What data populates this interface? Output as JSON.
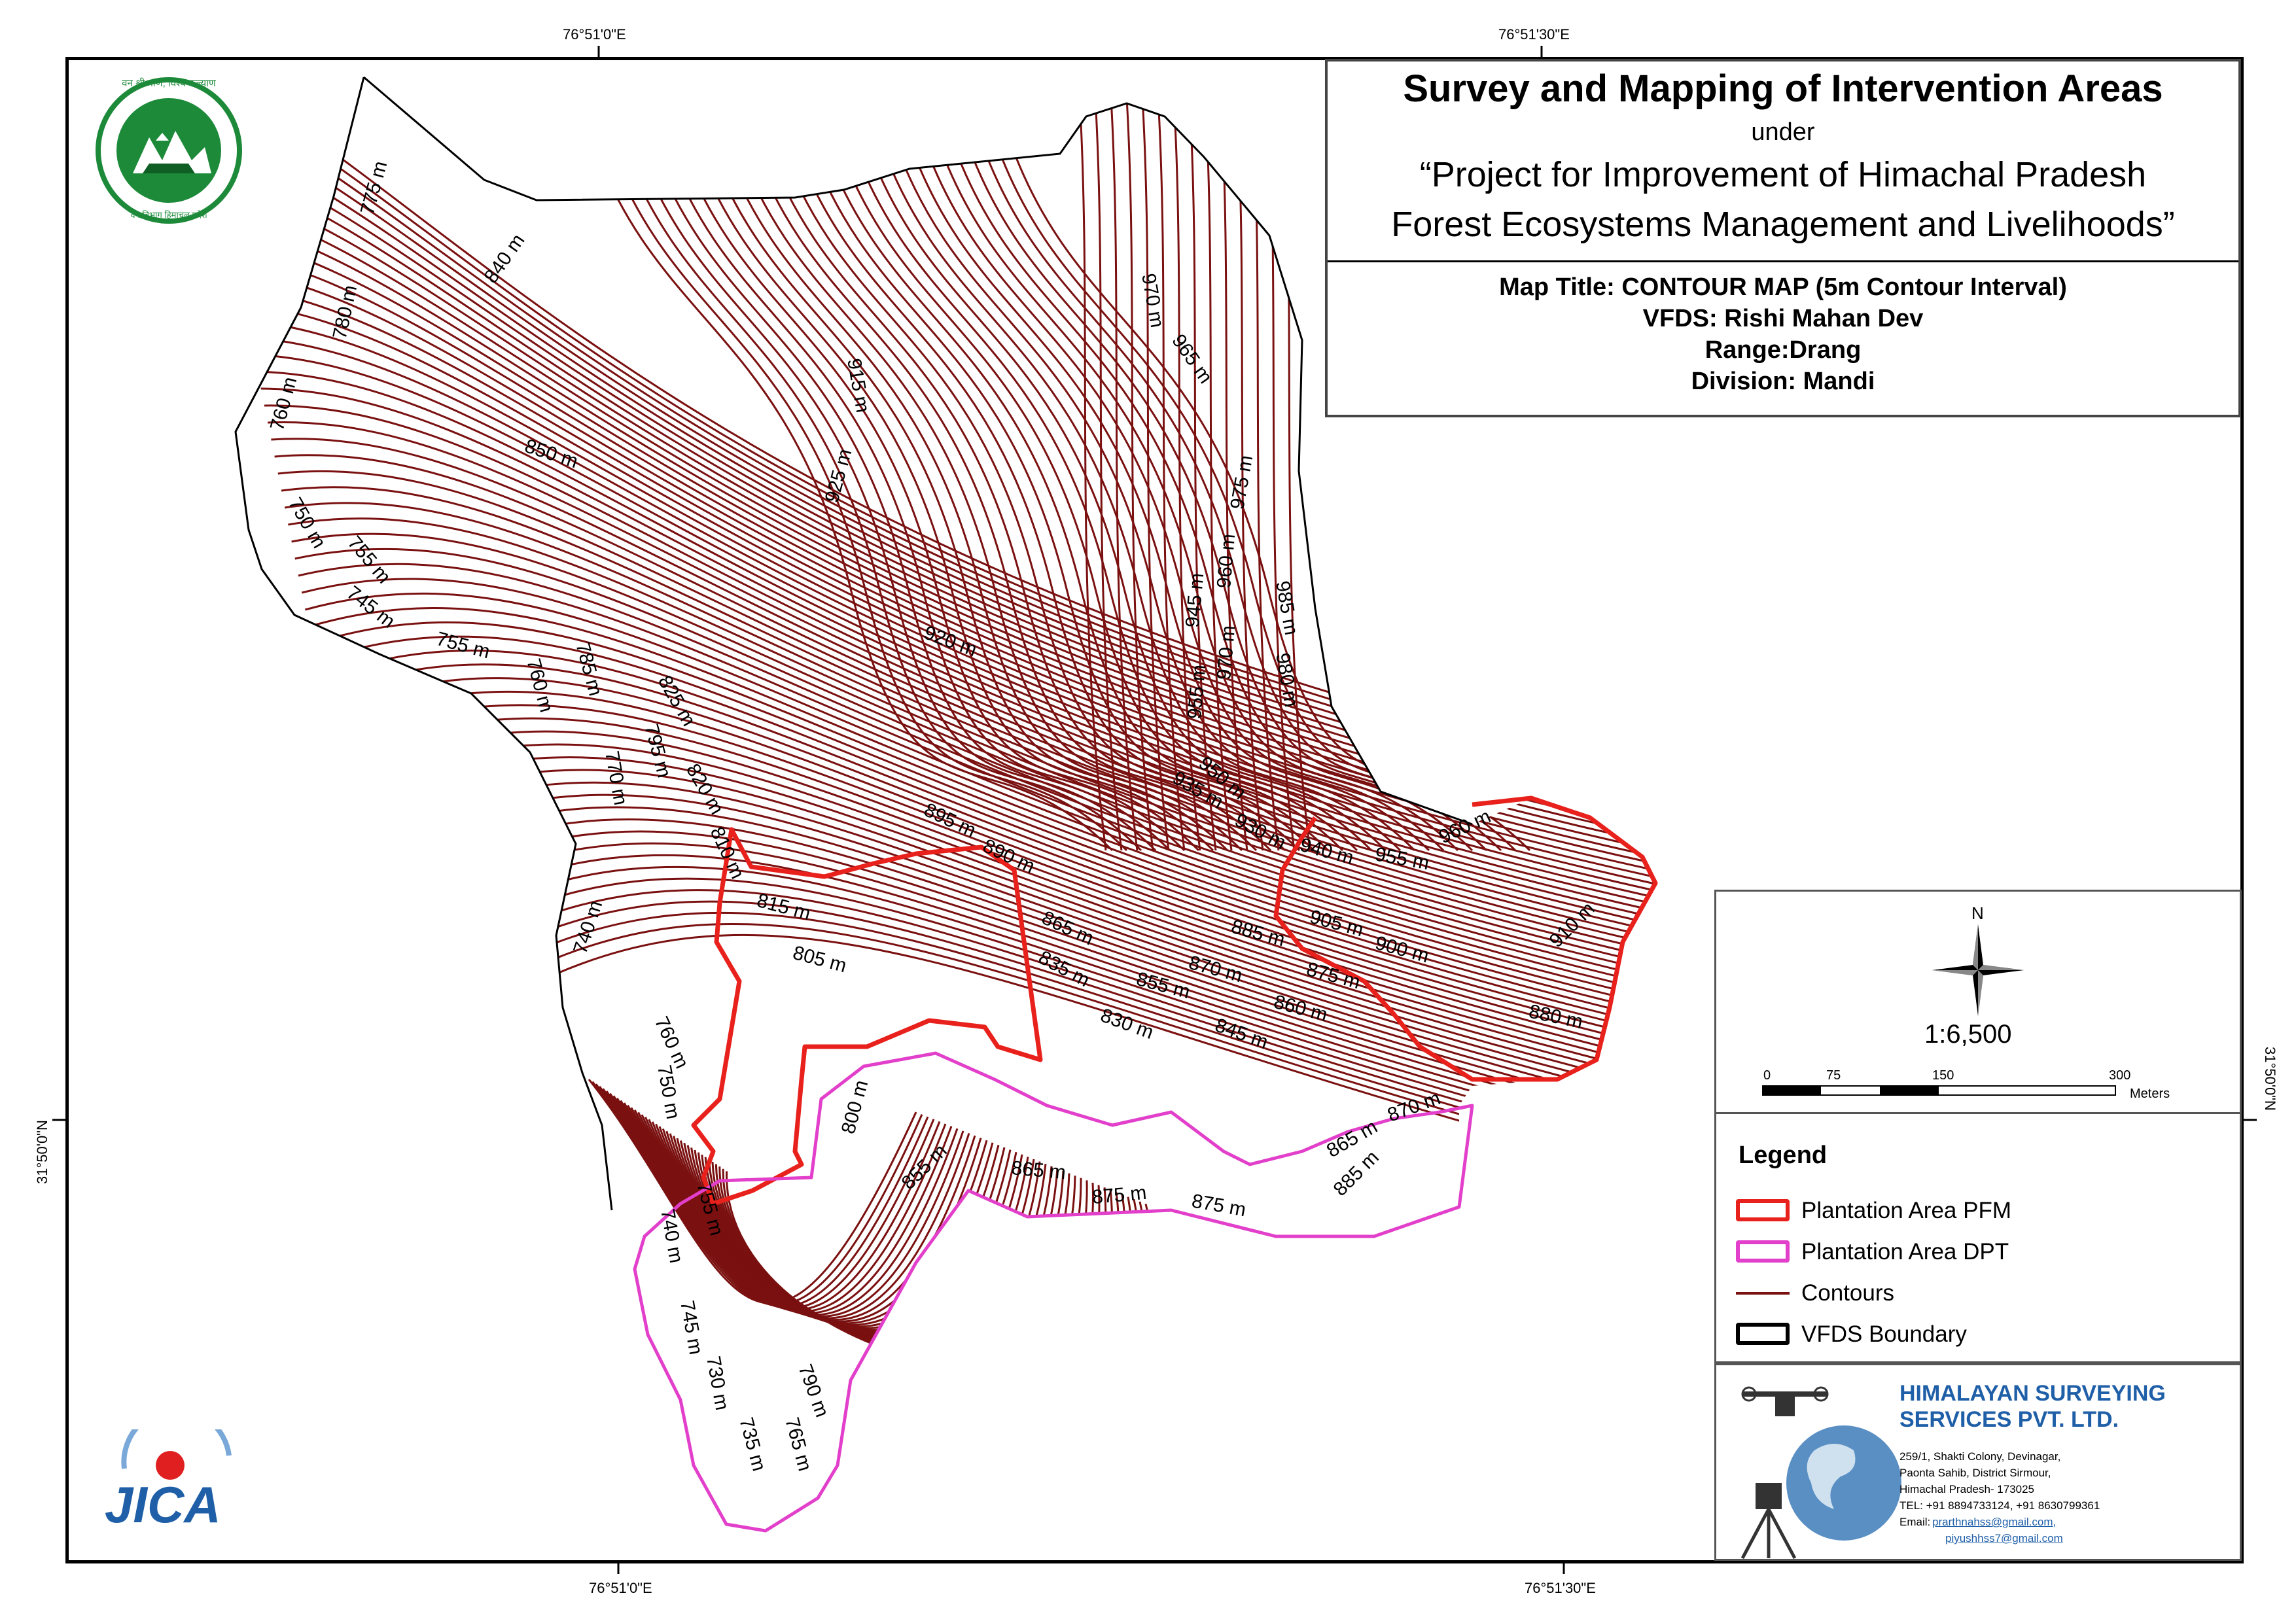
{
  "coordinates": {
    "top_left": "76°51'0\"E",
    "top_right": "76°51'30\"E",
    "bottom_left": "76°51'0\"E",
    "bottom_right": "76°51'30\"E",
    "left": "31°50'0\"N",
    "right": "31°50'0\"N"
  },
  "title": {
    "main": "Survey and Mapping of Intervention Areas",
    "under": "under",
    "project_line1": "“Project for Improvement of Himachal Pradesh",
    "project_line2": "Forest Ecosystems Management and Livelihoods”",
    "map_title": "Map Title: CONTOUR MAP (5m Contour Interval)",
    "vfds": "VFDS: Rishi Mahan Dev",
    "range": "Range:Drang",
    "division": "Division: Mandi"
  },
  "north_arrow": {
    "label": "N"
  },
  "scale": {
    "ratio": "1:6,500",
    "ticks": [
      "0",
      "75",
      "150",
      "300"
    ],
    "unit": "Meters"
  },
  "legend": {
    "heading": "Legend",
    "items": [
      {
        "label": "Plantation Area PFM",
        "color": "#e8211c",
        "kind": "outline"
      },
      {
        "label": "Plantation Area DPT",
        "color": "#e23fcb",
        "kind": "outline"
      },
      {
        "label": "Contours",
        "color": "#7a1010",
        "kind": "line"
      },
      {
        "label": "VFDS Boundary",
        "color": "#000000",
        "kind": "outline"
      }
    ]
  },
  "company": {
    "name_line1": "HIMALAYAN SURVEYING",
    "name_line2": "SERVICES PVT. LTD.",
    "address1": "259/1, Shakti Colony, Devinagar,",
    "address2": "Paonta Sahib, District Sirmour,",
    "address3": "Himachal Pradesh- 173025",
    "phone": "TEL: +91 8894733124, +91 8630799361",
    "email_label": "Email:",
    "email1": "prarthnahss@gmail.com,",
    "email2": "piyushhss7@gmail.com",
    "color": "#1f5fa8"
  },
  "logos": {
    "forest_dept_top": "वन श्री त्राण, विश्व कल्याण",
    "forest_dept_bottom": "वन विभाग हिमाचल प्रदेश",
    "jica": "JICA"
  },
  "contour_labels": [
    "775 m",
    "780 m",
    "760 m",
    "750 m",
    "755 m",
    "745 m",
    "755 m",
    "840 m",
    "850 m",
    "915 m",
    "925 m",
    "920 m",
    "970 m",
    "965 m",
    "975 m",
    "960 m",
    "945 m",
    "985 m",
    "970 m",
    "955 m",
    "980 m",
    "950 m",
    "935 m",
    "930 m",
    "940 m",
    "955 m",
    "960 m",
    "785 m",
    "760 m",
    "825 m",
    "795 m",
    "770 m",
    "820 m",
    "810 m",
    "895 m",
    "890 m",
    "815 m",
    "865 m",
    "905 m",
    "900 m",
    "910 m",
    "740 m",
    "805 m",
    "835 m",
    "885 m",
    "870 m",
    "875 m",
    "855 m",
    "860 m",
    "880 m",
    "830 m",
    "845 m",
    "760 m",
    "750 m",
    "800 m",
    "865 m",
    "870 m",
    "855 m",
    "865 m",
    "875 m",
    "875 m",
    "885 m",
    "755 m",
    "740 m",
    "745 m",
    "730 m",
    "790 m",
    "735 m",
    "765 m"
  ],
  "colors": {
    "contour": "#7a1010",
    "pfm": "#e8211c",
    "dpt": "#e23fcb",
    "boundary": "#000000"
  }
}
